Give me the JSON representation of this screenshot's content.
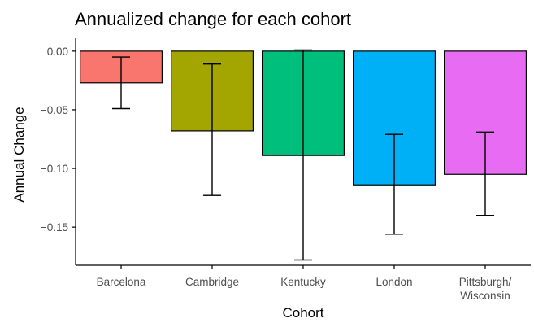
{
  "chart_data": {
    "type": "bar",
    "title": "Annualized change for each cohort",
    "xlabel": "Cohort",
    "ylabel": "Annual Change",
    "categories": [
      "Barcelona",
      "Cambridge",
      "Kentucky",
      "London",
      "Pittsburgh/\nWisconsin"
    ],
    "values": [
      -0.027,
      -0.068,
      -0.089,
      -0.114,
      -0.105
    ],
    "error_low": [
      -0.049,
      -0.123,
      -0.178,
      -0.156,
      -0.14
    ],
    "error_high": [
      -0.005,
      -0.011,
      0.001,
      -0.071,
      -0.069
    ],
    "colors": [
      "#F8766D",
      "#A3A500",
      "#00BF7D",
      "#00B0F6",
      "#E76BF3"
    ],
    "ylim": [
      -0.1825,
      0.011
    ],
    "yticks": [
      0.0,
      -0.05,
      -0.1,
      -0.15
    ],
    "ytick_labels": [
      "0.00",
      "−0.05",
      "−0.10",
      "−0.15"
    ],
    "grid": false,
    "legend": "none"
  }
}
